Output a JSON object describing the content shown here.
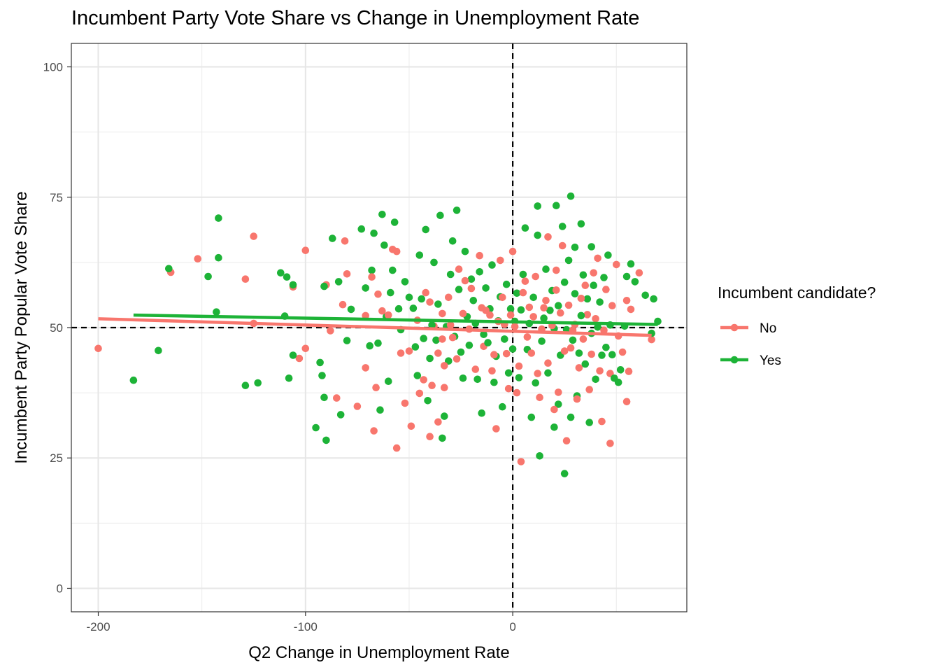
{
  "chart_data": {
    "type": "scatter",
    "title": "Incumbent Party Vote Share vs Change in Unemployment Rate",
    "xlabel": "Q2 Change in Unemployment Rate",
    "ylabel": "Incumbent Party Popular Vote Share",
    "xlim": [
      -213,
      84
    ],
    "ylim": [
      -4.5,
      104.5
    ],
    "x_ticks": [
      -200,
      -100,
      0
    ],
    "y_ticks": [
      0,
      25,
      50,
      75,
      100
    ],
    "grid": true,
    "reference_lines": {
      "vertical_x": 0,
      "horizontal_y": 50,
      "style": "dashed"
    },
    "legend": {
      "title": "Incumbent candidate?",
      "placement": "right"
    },
    "series": [
      {
        "name": "No",
        "color": "#F8766D",
        "trend": {
          "x": [
            -200,
            67
          ],
          "y": [
            51.7,
            48.5
          ]
        },
        "points": [
          [
            -200,
            46
          ],
          [
            -165,
            60.6
          ],
          [
            -152,
            63.2
          ],
          [
            -129,
            59.3
          ],
          [
            -125,
            67.5
          ],
          [
            -125,
            50.8
          ],
          [
            -106,
            57.8
          ],
          [
            -103,
            44.1
          ],
          [
            -100,
            46
          ],
          [
            -100,
            64.8
          ],
          [
            -90,
            58.2
          ],
          [
            -88,
            49.4
          ],
          [
            -85,
            36.5
          ],
          [
            -82,
            54.4
          ],
          [
            -81,
            66.6
          ],
          [
            -80,
            60.3
          ],
          [
            -75,
            34.9
          ],
          [
            -71,
            52.3
          ],
          [
            -71,
            42.3
          ],
          [
            -68,
            59.7
          ],
          [
            -67,
            30.2
          ],
          [
            -66,
            38.5
          ],
          [
            -65,
            56.4
          ],
          [
            -63,
            53.2
          ],
          [
            -60,
            52.4
          ],
          [
            -58,
            65
          ],
          [
            -56,
            64.6
          ],
          [
            -56,
            26.9
          ],
          [
            -54,
            45.1
          ],
          [
            -52,
            35.5
          ],
          [
            -50,
            45.5
          ],
          [
            -49,
            31.1
          ],
          [
            -46,
            51.4
          ],
          [
            -45,
            37.4
          ],
          [
            -43,
            40
          ],
          [
            -42,
            56.7
          ],
          [
            -40,
            29.1
          ],
          [
            -40,
            54.9
          ],
          [
            -39,
            38.9
          ],
          [
            -38,
            50.3
          ],
          [
            -36,
            45.1
          ],
          [
            -36,
            31.9
          ],
          [
            -34,
            52.7
          ],
          [
            -34,
            47.8
          ],
          [
            -33,
            42.7
          ],
          [
            -33,
            38.5
          ],
          [
            -31,
            55.8
          ],
          [
            -30,
            50.5
          ],
          [
            -29,
            48.1
          ],
          [
            -27,
            44
          ],
          [
            -26,
            61.2
          ],
          [
            -24,
            52.7
          ],
          [
            -23,
            59
          ],
          [
            -21,
            49.7
          ],
          [
            -20,
            57.5
          ],
          [
            -18,
            42
          ],
          [
            -16,
            63.8
          ],
          [
            -15,
            53.8
          ],
          [
            -14,
            46.4
          ],
          [
            -13,
            53.3
          ],
          [
            -11,
            52.4
          ],
          [
            -10,
            41.7
          ],
          [
            -9,
            44.8
          ],
          [
            -8,
            30.6
          ],
          [
            -7,
            51.2
          ],
          [
            -6,
            62.9
          ],
          [
            -5,
            55.8
          ],
          [
            -4,
            50.6
          ],
          [
            -3,
            45
          ],
          [
            -2,
            38.3
          ],
          [
            -1,
            52.4
          ],
          [
            0,
            64.6
          ],
          [
            1,
            50.2
          ],
          [
            2,
            37.5
          ],
          [
            3,
            42.6
          ],
          [
            4,
            24.3
          ],
          [
            5,
            56.7
          ],
          [
            6,
            58.9
          ],
          [
            7,
            48.2
          ],
          [
            8,
            53.9
          ],
          [
            9,
            45.1
          ],
          [
            10,
            52.1
          ],
          [
            11,
            59.8
          ],
          [
            12,
            41.2
          ],
          [
            13,
            36.6
          ],
          [
            14,
            49.7
          ],
          [
            15,
            53.8
          ],
          [
            16,
            55.2
          ],
          [
            17,
            43.2
          ],
          [
            17,
            67.4
          ],
          [
            19,
            50.4
          ],
          [
            20,
            34.3
          ],
          [
            21,
            57.2
          ],
          [
            21,
            61
          ],
          [
            22,
            37.6
          ],
          [
            23,
            52.8
          ],
          [
            24,
            65.7
          ],
          [
            25,
            45.5
          ],
          [
            26,
            28.3
          ],
          [
            27,
            54.3
          ],
          [
            28,
            46.1
          ],
          [
            29,
            49.5
          ],
          [
            30,
            50.6
          ],
          [
            31,
            36.3
          ],
          [
            32,
            42.3
          ],
          [
            33,
            55.6
          ],
          [
            34,
            47.8
          ],
          [
            35,
            58.1
          ],
          [
            36,
            52.5
          ],
          [
            37,
            38.1
          ],
          [
            38,
            44.9
          ],
          [
            39,
            60.5
          ],
          [
            40,
            51.7
          ],
          [
            41,
            63.3
          ],
          [
            42,
            41.7
          ],
          [
            43,
            32
          ],
          [
            44,
            49.5
          ],
          [
            45,
            57.3
          ],
          [
            47,
            41.2
          ],
          [
            47,
            27.8
          ],
          [
            48,
            54.2
          ],
          [
            50,
            62.1
          ],
          [
            51,
            48.4
          ],
          [
            53,
            45.3
          ],
          [
            55,
            35.8
          ],
          [
            55,
            55.2
          ],
          [
            56,
            41.6
          ],
          [
            57,
            53.5
          ],
          [
            61,
            60.5
          ],
          [
            67,
            47.7
          ]
        ]
      },
      {
        "name": "Yes",
        "color": "#1DB337",
        "trend": {
          "x": [
            -183,
            70
          ],
          "y": [
            52.4,
            50.6
          ]
        },
        "points": [
          [
            -183,
            39.9
          ],
          [
            -171,
            45.6
          ],
          [
            -166,
            61.3
          ],
          [
            -147,
            59.8
          ],
          [
            -143,
            53
          ],
          [
            -142,
            63.4
          ],
          [
            -142,
            71
          ],
          [
            -129,
            38.9
          ],
          [
            -123,
            39.4
          ],
          [
            -112,
            60.5
          ],
          [
            -110,
            52.2
          ],
          [
            -109,
            59.7
          ],
          [
            -106,
            44.7
          ],
          [
            -106,
            58.2
          ],
          [
            -108,
            40.3
          ],
          [
            -95,
            30.8
          ],
          [
            -93,
            43.3
          ],
          [
            -92,
            40.8
          ],
          [
            -91,
            36.6
          ],
          [
            -91,
            57.9
          ],
          [
            -90,
            28.4
          ],
          [
            -87,
            67.1
          ],
          [
            -84,
            58.8
          ],
          [
            -83,
            33.3
          ],
          [
            -80,
            47.5
          ],
          [
            -78,
            53.5
          ],
          [
            -73,
            68.9
          ],
          [
            -71,
            57.6
          ],
          [
            -69,
            46.5
          ],
          [
            -68,
            61
          ],
          [
            -67,
            68.1
          ],
          [
            -65,
            47
          ],
          [
            -64,
            34.2
          ],
          [
            -63,
            71.7
          ],
          [
            -62,
            65.8
          ],
          [
            -61,
            52.1
          ],
          [
            -60,
            39.7
          ],
          [
            -59,
            56.7
          ],
          [
            -58,
            61
          ],
          [
            -57,
            70.2
          ],
          [
            -55,
            53.6
          ],
          [
            -54,
            49.6
          ],
          [
            -52,
            58.8
          ],
          [
            -50,
            55.8
          ],
          [
            -48,
            53.7
          ],
          [
            -47,
            46.3
          ],
          [
            -46,
            40.8
          ],
          [
            -45,
            63.9
          ],
          [
            -44,
            55.5
          ],
          [
            -43,
            47.9
          ],
          [
            -42,
            68.8
          ],
          [
            -41,
            36
          ],
          [
            -40,
            44.1
          ],
          [
            -39,
            50.5
          ],
          [
            -38,
            62.5
          ],
          [
            -37,
            47.6
          ],
          [
            -36,
            54.5
          ],
          [
            -35,
            71.5
          ],
          [
            -34,
            28.8
          ],
          [
            -33,
            33
          ],
          [
            -32,
            50.2
          ],
          [
            -31,
            43.6
          ],
          [
            -30,
            60.2
          ],
          [
            -29,
            66.6
          ],
          [
            -28,
            48.3
          ],
          [
            -27,
            72.5
          ],
          [
            -26,
            57.3
          ],
          [
            -25,
            45.3
          ],
          [
            -24,
            40.3
          ],
          [
            -23,
            64.6
          ],
          [
            -22,
            52.1
          ],
          [
            -21,
            46.6
          ],
          [
            -20,
            59.3
          ],
          [
            -19,
            55.2
          ],
          [
            -18,
            50.8
          ],
          [
            -17,
            40.1
          ],
          [
            -16,
            60.7
          ],
          [
            -15,
            33.6
          ],
          [
            -14,
            48.7
          ],
          [
            -13,
            57.6
          ],
          [
            -12,
            47.1
          ],
          [
            -11,
            53.6
          ],
          [
            -10,
            62
          ],
          [
            -9,
            39.5
          ],
          [
            -8,
            44.5
          ],
          [
            -7,
            51.3
          ],
          [
            -6,
            55.9
          ],
          [
            -5,
            34.8
          ],
          [
            -4,
            47.8
          ],
          [
            -3,
            58.3
          ],
          [
            -2,
            41.3
          ],
          [
            -1,
            53.6
          ],
          [
            0,
            45.9
          ],
          [
            1,
            51.2
          ],
          [
            2,
            56.6
          ],
          [
            3,
            40.4
          ],
          [
            4,
            53.4
          ],
          [
            5,
            60.2
          ],
          [
            6,
            69.1
          ],
          [
            7,
            45.8
          ],
          [
            8,
            50.8
          ],
          [
            9,
            32.8
          ],
          [
            10,
            55.8
          ],
          [
            11,
            39.4
          ],
          [
            12,
            67.7
          ],
          [
            12,
            73.3
          ],
          [
            13,
            25.4
          ],
          [
            14,
            47.4
          ],
          [
            15,
            51.8
          ],
          [
            16,
            61.2
          ],
          [
            17,
            41.3
          ],
          [
            18,
            53.3
          ],
          [
            19,
            57.1
          ],
          [
            20,
            30.9
          ],
          [
            20,
            49.8
          ],
          [
            21,
            73.4
          ],
          [
            22,
            35.3
          ],
          [
            22,
            54.2
          ],
          [
            23,
            44.7
          ],
          [
            24,
            69.4
          ],
          [
            25,
            22
          ],
          [
            25,
            58.7
          ],
          [
            26,
            49.6
          ],
          [
            27,
            62.9
          ],
          [
            28,
            32.8
          ],
          [
            28,
            75.2
          ],
          [
            29,
            47.6
          ],
          [
            30,
            56.5
          ],
          [
            30,
            65.4
          ],
          [
            31,
            36.9
          ],
          [
            32,
            45.1
          ],
          [
            33,
            52.3
          ],
          [
            33,
            69.9
          ],
          [
            34,
            60.1
          ],
          [
            35,
            43
          ],
          [
            36,
            55.5
          ],
          [
            37,
            31.8
          ],
          [
            38,
            48.9
          ],
          [
            38,
            65.5
          ],
          [
            39,
            58.1
          ],
          [
            40,
            40.1
          ],
          [
            41,
            50.1
          ],
          [
            42,
            54.9
          ],
          [
            43,
            44.7
          ],
          [
            44,
            59.6
          ],
          [
            45,
            46.2
          ],
          [
            46,
            63.9
          ],
          [
            47,
            50.5
          ],
          [
            48,
            44.8
          ],
          [
            49,
            40.3
          ],
          [
            51,
            39.5
          ],
          [
            52,
            41.9
          ],
          [
            54,
            50.3
          ],
          [
            55,
            59.8
          ],
          [
            57,
            62.2
          ],
          [
            59,
            58.8
          ],
          [
            64,
            56.2
          ],
          [
            67,
            48.9
          ],
          [
            68,
            55.5
          ],
          [
            70,
            51.2
          ]
        ]
      }
    ]
  }
}
